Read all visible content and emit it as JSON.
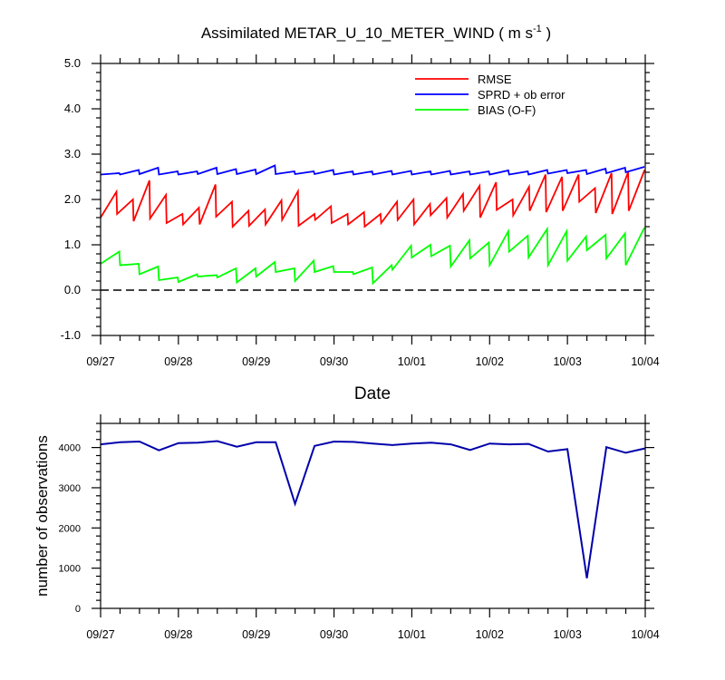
{
  "chart_data": [
    {
      "type": "line",
      "title": "Assimilated METAR_U_10_METER_WIND ( m s",
      "title_sup": "-1",
      "title_end": " )",
      "xlabel": "Date",
      "ylabel": "",
      "ylim": [
        -1.0,
        5.0
      ],
      "yticks": [
        -1.0,
        0.0,
        1.0,
        2.0,
        3.0,
        4.0,
        5.0
      ],
      "ytick_labels": [
        "-1.0",
        "0.0",
        "1.0",
        "2.0",
        "3.0",
        "4.0",
        "5.0"
      ],
      "x_start": 0,
      "x_step": 0.125,
      "xlim": [
        0,
        7
      ],
      "xtick_positions": [
        0,
        1,
        2,
        3,
        4,
        5,
        6,
        7
      ],
      "xtick_labels": [
        "09/27",
        "09/28",
        "09/29",
        "09/30",
        "10/01",
        "10/02",
        "10/03",
        "10/04"
      ],
      "reference_line": 0.0,
      "legend_position": "top-right",
      "series": [
        {
          "name": "RMSE",
          "color": "#ff0000",
          "values": [
            [
              1.6,
              2.17
            ],
            [
              1.68,
              2.0
            ],
            [
              1.52,
              2.42
            ],
            [
              1.58,
              2.1
            ],
            [
              1.48,
              1.68
            ],
            [
              1.45,
              1.82
            ],
            [
              1.45,
              2.33
            ],
            [
              1.62,
              1.95
            ],
            [
              1.4,
              1.75
            ],
            [
              1.42,
              1.78
            ],
            [
              1.45,
              1.98
            ],
            [
              1.55,
              2.18
            ],
            [
              1.42,
              1.68
            ],
            [
              1.55,
              1.85
            ],
            [
              1.48,
              1.68
            ],
            [
              1.45,
              1.72
            ],
            [
              1.4,
              1.68
            ],
            [
              1.48,
              1.95
            ],
            [
              1.55,
              2.0
            ],
            [
              1.45,
              1.9
            ],
            [
              1.65,
              2.03
            ],
            [
              1.6,
              2.12
            ],
            [
              1.75,
              2.3
            ],
            [
              1.6,
              2.38
            ],
            [
              1.77,
              2.0
            ],
            [
              1.65,
              2.28
            ],
            [
              1.75,
              2.55
            ],
            [
              1.72,
              2.5
            ],
            [
              1.75,
              2.55
            ],
            [
              1.95,
              2.25
            ],
            [
              1.7,
              2.58
            ],
            [
              1.68,
              2.6
            ],
            [
              1.75,
              2.65
            ]
          ]
        },
        {
          "name": "SPRD + ob error",
          "color": "#0000ff",
          "values": [
            [
              2.55,
              2.58
            ],
            [
              2.55,
              2.65
            ],
            [
              2.56,
              2.7
            ],
            [
              2.55,
              2.62
            ],
            [
              2.55,
              2.62
            ],
            [
              2.56,
              2.7
            ],
            [
              2.56,
              2.67
            ],
            [
              2.56,
              2.66
            ],
            [
              2.56,
              2.75
            ],
            [
              2.56,
              2.62
            ],
            [
              2.56,
              2.62
            ],
            [
              2.56,
              2.65
            ],
            [
              2.55,
              2.62
            ],
            [
              2.55,
              2.62
            ],
            [
              2.55,
              2.63
            ],
            [
              2.55,
              2.63
            ],
            [
              2.55,
              2.62
            ],
            [
              2.55,
              2.63
            ],
            [
              2.55,
              2.62
            ],
            [
              2.55,
              2.62
            ],
            [
              2.55,
              2.64
            ],
            [
              2.55,
              2.62
            ],
            [
              2.55,
              2.65
            ],
            [
              2.57,
              2.65
            ],
            [
              2.58,
              2.65
            ],
            [
              2.56,
              2.68
            ],
            [
              2.58,
              2.7
            ],
            [
              2.6,
              2.72
            ]
          ]
        },
        {
          "name": "BIAS (O-F)",
          "color": "#00ff00",
          "values": [
            [
              0.58,
              0.85
            ],
            [
              0.55,
              0.58
            ],
            [
              0.35,
              0.52
            ],
            [
              0.22,
              0.28
            ],
            [
              0.18,
              0.35
            ],
            [
              0.3,
              0.33
            ],
            [
              0.28,
              0.48
            ],
            [
              0.17,
              0.48
            ],
            [
              0.3,
              0.62
            ],
            [
              0.4,
              0.48
            ],
            [
              0.2,
              0.65
            ],
            [
              0.4,
              0.53
            ],
            [
              0.4,
              0.4
            ],
            [
              0.35,
              0.5
            ],
            [
              0.15,
              0.55
            ],
            [
              0.45,
              0.98
            ],
            [
              0.72,
              1.0
            ],
            [
              0.75,
              0.98
            ],
            [
              0.52,
              1.1
            ],
            [
              0.7,
              1.05
            ],
            [
              0.55,
              1.3
            ],
            [
              0.85,
              1.2
            ],
            [
              0.72,
              1.35
            ],
            [
              0.55,
              1.3
            ],
            [
              0.65,
              1.18
            ],
            [
              0.88,
              1.22
            ],
            [
              0.7,
              1.25
            ],
            [
              0.55,
              1.38
            ]
          ]
        }
      ]
    },
    {
      "type": "line",
      "title": "",
      "xlabel": "",
      "ylabel": "number of observations",
      "ylim": [
        0,
        4600
      ],
      "yticks": [
        0,
        1000,
        2000,
        3000,
        4000
      ],
      "ytick_labels": [
        "0",
        "1000",
        "2000",
        "3000",
        "4000"
      ],
      "xlim": [
        0,
        7
      ],
      "xtick_positions": [
        0,
        1,
        2,
        3,
        4,
        5,
        6,
        7
      ],
      "xtick_labels": [
        "09/27",
        "09/28",
        "09/29",
        "09/30",
        "10/01",
        "10/02",
        "10/03",
        "10/04"
      ],
      "series": [
        {
          "name": "observations",
          "color": "#0000aa",
          "x": [
            0,
            0.25,
            0.5,
            0.75,
            1.0,
            1.25,
            1.5,
            1.75,
            2.0,
            2.25,
            2.5,
            2.75,
            3.0,
            3.25,
            3.5,
            3.75,
            4.0,
            4.25,
            4.5,
            4.75,
            5.0,
            5.25,
            5.5,
            5.75,
            6.0,
            6.25,
            6.5,
            6.75,
            7.0
          ],
          "values": [
            4080,
            4130,
            4150,
            3930,
            4110,
            4120,
            4160,
            4020,
            4130,
            4130,
            2600,
            4040,
            4150,
            4140,
            4100,
            4060,
            4100,
            4120,
            4080,
            3940,
            4100,
            4080,
            4090,
            3900,
            3960,
            750,
            4010,
            3870,
            3980
          ]
        }
      ]
    }
  ]
}
